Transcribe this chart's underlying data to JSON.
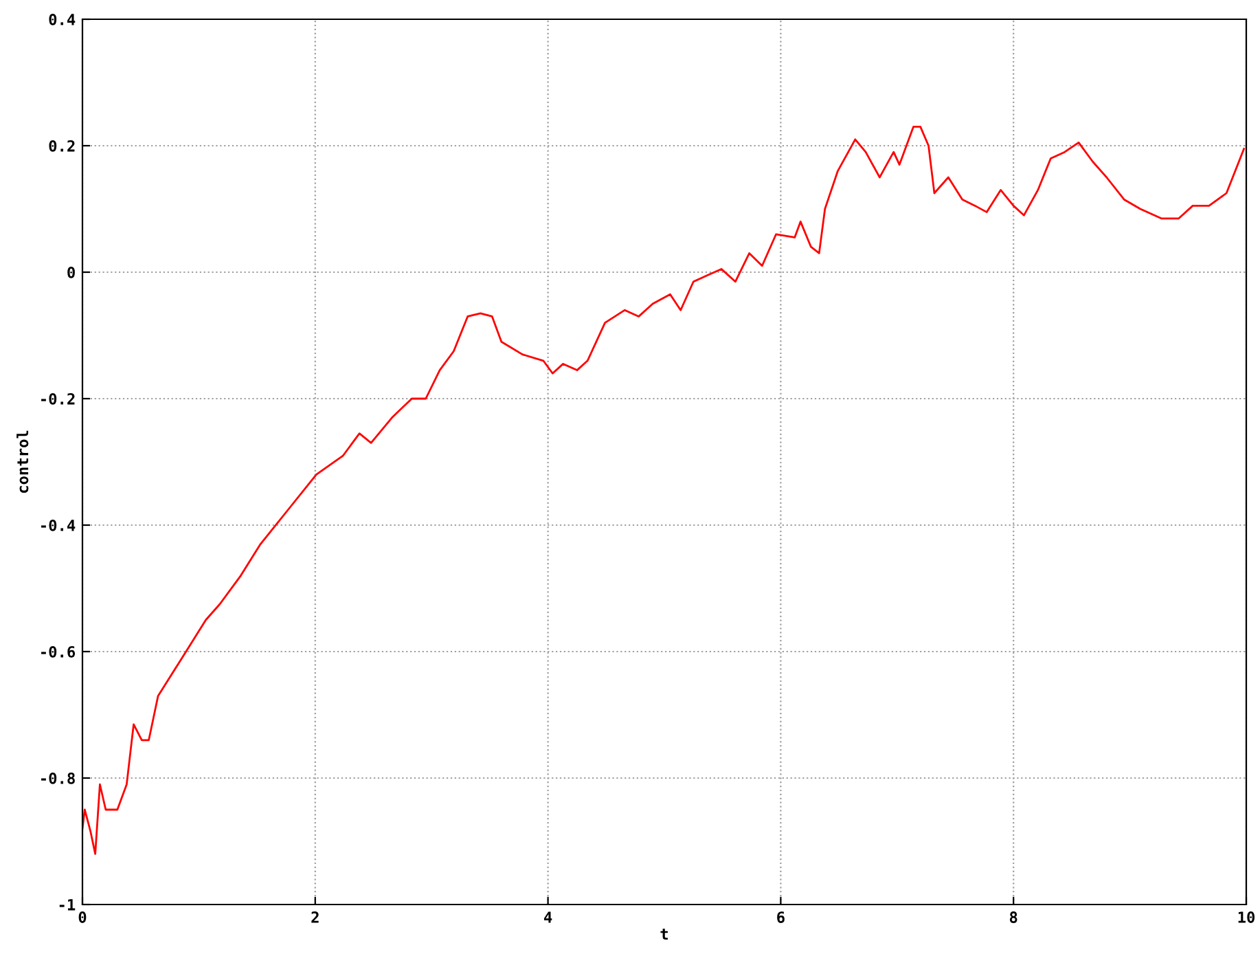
{
  "chart_data": {
    "type": "line",
    "xlabel": "t",
    "ylabel": "control",
    "x": [
      0,
      0.02,
      0.07,
      0.11,
      0.15,
      0.2,
      0.3,
      0.38,
      0.44,
      0.51,
      0.57,
      0.65,
      0.77,
      0.89,
      1.06,
      1.18,
      1.36,
      1.53,
      1.77,
      2.01,
      2.24,
      2.38,
      2.48,
      2.66,
      2.83,
      2.95,
      3.07,
      3.19,
      3.31,
      3.42,
      3.52,
      3.6,
      3.78,
      3.96,
      4.04,
      4.13,
      4.25,
      4.34,
      4.49,
      4.66,
      4.78,
      4.9,
      5.05,
      5.14,
      5.25,
      5.37,
      5.49,
      5.61,
      5.73,
      5.84,
      5.96,
      6.12,
      6.17,
      6.26,
      6.33,
      6.38,
      6.49,
      6.64,
      6.73,
      6.85,
      6.97,
      7.02,
      7.14,
      7.2,
      7.27,
      7.32,
      7.44,
      7.56,
      7.67,
      7.77,
      7.89,
      8.0,
      8.09,
      8.21,
      8.32,
      8.44,
      8.56,
      8.68,
      8.8,
      8.95,
      9.09,
      9.27,
      9.42,
      9.54,
      9.68,
      9.83,
      9.98
    ],
    "series": [
      {
        "color": "#ff0000",
        "values": [
          -0.88,
          -0.85,
          -0.885,
          -0.92,
          -0.81,
          -0.85,
          -0.85,
          -0.81,
          -0.715,
          -0.74,
          -0.74,
          -0.67,
          -0.635,
          -0.6,
          -0.55,
          -0.525,
          -0.48,
          -0.43,
          -0.375,
          -0.32,
          -0.29,
          -0.255,
          -0.27,
          -0.23,
          -0.2,
          -0.2,
          -0.155,
          -0.125,
          -0.07,
          -0.065,
          -0.07,
          -0.11,
          -0.13,
          -0.14,
          -0.16,
          -0.145,
          -0.155,
          -0.14,
          -0.08,
          -0.06,
          -0.07,
          -0.05,
          -0.035,
          -0.06,
          -0.015,
          -0.005,
          0.005,
          -0.015,
          0.03,
          0.01,
          0.06,
          0.055,
          0.08,
          0.04,
          0.03,
          0.1,
          0.16,
          0.21,
          0.19,
          0.15,
          0.19,
          0.17,
          0.23,
          0.23,
          0.2,
          0.125,
          0.15,
          0.115,
          0.105,
          0.095,
          0.13,
          0.105,
          0.09,
          0.13,
          0.18,
          0.19,
          0.205,
          0.175,
          0.15,
          0.115,
          0.1,
          0.085,
          0.085,
          0.105,
          0.105,
          0.125,
          0.195
        ]
      }
    ],
    "xlim": [
      0,
      10
    ],
    "xticks": [
      0,
      2,
      4,
      6,
      8,
      10
    ],
    "ylim": [
      -1,
      0.4
    ],
    "yticks": [
      -1,
      -0.8,
      -0.6,
      -0.4,
      -0.2,
      0,
      0.2,
      0.4
    ],
    "grid": true,
    "line_style": "solid"
  }
}
